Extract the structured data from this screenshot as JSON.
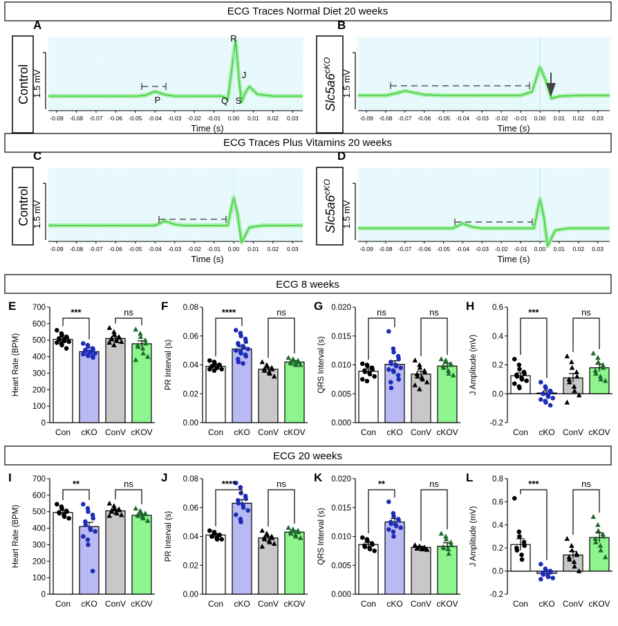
{
  "headers": {
    "traces_normal": "ECG Traces Normal Diet 20 weeks",
    "traces_vitamins": "ECG Traces Plus Vitamins 20 weeks",
    "ecg_8": "ECG 8 weeks",
    "ecg_20": "ECG 20 weeks"
  },
  "colors": {
    "trace": "#3ecf3e",
    "trace_band": "#a8eea8",
    "trace_grid": "#d6f3f7",
    "con": "#ffffff",
    "cko": "#b9b9f3",
    "conv": "#c8c8c8",
    "ckov": "#8ef58e",
    "pt_con": "#000000",
    "pt_cko": "#1d2bb5",
    "pt_conv": "#000000",
    "pt_ckov": "#1e6b2e"
  },
  "trace_panels": [
    {
      "letter": "A",
      "label": "Control",
      "italic": false,
      "sup": "",
      "scale": "1.5 mV",
      "xlabel": "Time (s)",
      "ticks": [
        "-0.09",
        "-0.08",
        "-0.07",
        "-0.06",
        "-0.05",
        "-0.04",
        "-0.03",
        "-0.02",
        "-0.01",
        "0.00",
        "0.01",
        "0.02",
        "0.03"
      ],
      "waves": [
        "P",
        "Q",
        "R",
        "S",
        "J"
      ]
    },
    {
      "letter": "B",
      "label": "Slc5a6",
      "italic": true,
      "sup": "cKO",
      "scale": "1.5 mV",
      "xlabel": "Time (s)",
      "ticks": [
        "-0.09",
        "-0.08",
        "-0.07",
        "-0.06",
        "-0.05",
        "-0.04",
        "-0.03",
        "-0.02",
        "-0.01",
        "0.00",
        "0.01",
        "0.02",
        "0.03"
      ],
      "waves": []
    },
    {
      "letter": "C",
      "label": "Control",
      "italic": false,
      "sup": "",
      "scale": "1.5 mV",
      "xlabel": "Time (s)",
      "ticks": [
        "-0.09",
        "-0.08",
        "-0.07",
        "-0.06",
        "-0.05",
        "-0.04",
        "-0.03",
        "-0.02",
        "-0.01",
        "0.00",
        "0.01",
        "0.02",
        "0.03"
      ],
      "waves": []
    },
    {
      "letter": "D",
      "label": "Slc5a6",
      "italic": true,
      "sup": "cKO",
      "scale": "1.5 mV",
      "xlabel": "Time (s)",
      "ticks": [
        "-0.09",
        "-0.08",
        "-0.07",
        "-0.06",
        "-0.05",
        "-0.04",
        "-0.03",
        "-0.02",
        "-0.01",
        "0.00",
        "0.01",
        "0.02",
        "0.03"
      ],
      "waves": []
    }
  ],
  "chart_data": [
    {
      "panel": "E",
      "type": "bar",
      "ylabel": "Heart Rate (BPM)",
      "ylim": [
        0,
        700
      ],
      "yticks": [
        "0",
        "100",
        "200",
        "300",
        "400",
        "500",
        "600",
        "700"
      ],
      "categories": [
        "Con",
        "cKO",
        "ConV",
        "cKOV"
      ],
      "values": [
        505,
        430,
        510,
        478
      ],
      "errors": [
        12,
        8,
        10,
        18
      ],
      "points": [
        [
          560,
          540,
          530,
          520,
          515,
          510,
          505,
          500,
          495,
          490,
          485,
          480,
          470,
          450
        ],
        [
          480,
          470,
          460,
          450,
          445,
          440,
          435,
          430,
          425,
          420,
          415,
          410,
          405,
          400,
          395
        ],
        [
          575,
          550,
          535,
          520,
          515,
          510,
          505,
          500,
          495,
          490,
          485,
          470
        ],
        [
          565,
          540,
          520,
          500,
          480,
          470,
          460,
          450,
          420,
          400,
          380
        ]
      ],
      "sig": [
        {
          "text": "***",
          "pair": [
            0,
            1
          ]
        },
        {
          "text": "ns",
          "pair": [
            2,
            3
          ]
        }
      ]
    },
    {
      "panel": "F",
      "type": "bar",
      "ylabel": "PR Interval (s)",
      "ylim": [
        0,
        0.08
      ],
      "yticks": [
        "0.00",
        "0.02",
        "0.04",
        "0.06",
        "0.08"
      ],
      "categories": [
        "Con",
        "cKO",
        "ConV",
        "cKOV"
      ],
      "values": [
        0.039,
        0.051,
        0.037,
        0.042
      ],
      "errors": [
        0.001,
        0.0015,
        0.001,
        0.001
      ],
      "points": [
        [
          0.043,
          0.042,
          0.041,
          0.04,
          0.04,
          0.039,
          0.039,
          0.038,
          0.038,
          0.037,
          0.037,
          0.036
        ],
        [
          0.064,
          0.062,
          0.06,
          0.058,
          0.056,
          0.055,
          0.054,
          0.053,
          0.052,
          0.051,
          0.05,
          0.049,
          0.048,
          0.047,
          0.046,
          0.044,
          0.042,
          0.041
        ],
        [
          0.042,
          0.04,
          0.039,
          0.038,
          0.037,
          0.037,
          0.036,
          0.035,
          0.034,
          0.032
        ],
        [
          0.045,
          0.044,
          0.043,
          0.043,
          0.042,
          0.042,
          0.041,
          0.041,
          0.04,
          0.04
        ]
      ],
      "sig": [
        {
          "text": "****",
          "pair": [
            0,
            1
          ]
        },
        {
          "text": "ns",
          "pair": [
            2,
            3
          ]
        }
      ]
    },
    {
      "panel": "G",
      "type": "bar",
      "ylabel": "QRS Interval  (s)",
      "ylim": [
        0,
        0.02
      ],
      "yticks": [
        "0.000",
        "0.005",
        "0.010",
        "0.015",
        "0.020"
      ],
      "categories": [
        "Con",
        "cKO",
        "ConV",
        "cKOV"
      ],
      "values": [
        0.0089,
        0.0101,
        0.0084,
        0.0098
      ],
      "errors": [
        0.0004,
        0.0006,
        0.0005,
        0.0005
      ],
      "points": [
        [
          0.0102,
          0.01,
          0.0098,
          0.0095,
          0.0092,
          0.009,
          0.0088,
          0.0086,
          0.0084,
          0.008,
          0.0075,
          0.0072
        ],
        [
          0.0158,
          0.0128,
          0.0122,
          0.0115,
          0.011,
          0.0105,
          0.0102,
          0.01,
          0.0098,
          0.0095,
          0.0092,
          0.009,
          0.0088,
          0.0082,
          0.0075,
          0.007,
          0.006
        ],
        [
          0.0108,
          0.01,
          0.0095,
          0.009,
          0.0087,
          0.0084,
          0.008,
          0.0078,
          0.0075,
          0.007,
          0.0065,
          0.0058
        ],
        [
          0.011,
          0.0108,
          0.0105,
          0.0102,
          0.01,
          0.0098,
          0.0095,
          0.009,
          0.0085,
          0.0082
        ]
      ],
      "sig": [
        {
          "text": "ns",
          "pair": [
            0,
            1
          ]
        },
        {
          "text": "ns",
          "pair": [
            2,
            3
          ]
        }
      ]
    },
    {
      "panel": "H",
      "type": "bar",
      "ylabel": "J Amplitude (mV)",
      "ylim": [
        -0.2,
        0.6
      ],
      "yticks": [
        "-0.2",
        "0.0",
        "0.2",
        "0.4",
        "0.6"
      ],
      "categories": [
        "Con",
        "cKO",
        "ConV",
        "cKOV"
      ],
      "values": [
        0.125,
        0.005,
        0.11,
        0.18
      ],
      "errors": [
        0.02,
        0.015,
        0.03,
        0.025
      ],
      "points": [
        [
          0.24,
          0.2,
          0.17,
          0.15,
          0.14,
          0.13,
          0.12,
          0.11,
          0.1,
          0.09,
          0.07,
          0.05,
          0.04
        ],
        [
          0.08,
          0.05,
          0.04,
          0.02,
          0.01,
          0.0,
          0.0,
          -0.01,
          -0.02,
          -0.03,
          -0.04,
          -0.05,
          -0.06,
          -0.08
        ],
        [
          0.26,
          0.22,
          0.18,
          0.15,
          0.12,
          0.1,
          0.08,
          0.05,
          0.02,
          -0.01,
          -0.06
        ],
        [
          0.28,
          0.25,
          0.22,
          0.2,
          0.18,
          0.16,
          0.14,
          0.12,
          0.1,
          0.09
        ]
      ],
      "sig": [
        {
          "text": "***",
          "pair": [
            0,
            1
          ]
        },
        {
          "text": "ns",
          "pair": [
            2,
            3
          ]
        }
      ]
    },
    {
      "panel": "I",
      "type": "bar",
      "ylabel": "Heart Rate (BPM)",
      "ylim": [
        0,
        700
      ],
      "yticks": [
        "0",
        "100",
        "200",
        "300",
        "400",
        "500",
        "600",
        "700"
      ],
      "categories": [
        "Con",
        "cKO",
        "ConV",
        "cKOV"
      ],
      "values": [
        495,
        410,
        505,
        478
      ],
      "errors": [
        12,
        25,
        10,
        8
      ],
      "points": [
        [
          545,
          530,
          520,
          505,
          500,
          495,
          490,
          480,
          470,
          460
        ],
        [
          545,
          520,
          500,
          480,
          460,
          440,
          420,
          400,
          390,
          380,
          350,
          330,
          300,
          140
        ],
        [
          550,
          535,
          520,
          515,
          510,
          505,
          500,
          495,
          490,
          480,
          475
        ],
        [
          520,
          505,
          495,
          490,
          485,
          480,
          475,
          470,
          460,
          445
        ]
      ],
      "sig": [
        {
          "text": "**",
          "pair": [
            0,
            1
          ]
        },
        {
          "text": "ns",
          "pair": [
            2,
            3
          ]
        }
      ]
    },
    {
      "panel": "J",
      "type": "bar",
      "ylabel": "PR Interval (s)",
      "ylim": [
        0,
        0.08
      ],
      "yticks": [
        "0.00",
        "0.02",
        "0.04",
        "0.06",
        "0.08"
      ],
      "categories": [
        "Con",
        "cKO",
        "ConV",
        "cKOV"
      ],
      "values": [
        0.041,
        0.063,
        0.039,
        0.043
      ],
      "errors": [
        0.0008,
        0.0025,
        0.001,
        0.001
      ],
      "points": [
        [
          0.044,
          0.043,
          0.042,
          0.041,
          0.041,
          0.04,
          0.04,
          0.039,
          0.038,
          0.038
        ],
        [
          0.077,
          0.074,
          0.07,
          0.068,
          0.066,
          0.065,
          0.063,
          0.062,
          0.06,
          0.058,
          0.055,
          0.052,
          0.05
        ],
        [
          0.044,
          0.042,
          0.041,
          0.04,
          0.039,
          0.039,
          0.038,
          0.037,
          0.036,
          0.035,
          0.033
        ],
        [
          0.046,
          0.045,
          0.044,
          0.044,
          0.043,
          0.043,
          0.042,
          0.041,
          0.04,
          0.039
        ]
      ],
      "sig": [
        {
          "text": "****",
          "pair": [
            0,
            1
          ]
        },
        {
          "text": "ns",
          "pair": [
            2,
            3
          ]
        }
      ]
    },
    {
      "panel": "K",
      "type": "bar",
      "ylabel": "QRS Interval  (s)",
      "ylim": [
        0,
        0.02
      ],
      "yticks": [
        "0.000",
        "0.005",
        "0.010",
        "0.015",
        "0.020"
      ],
      "categories": [
        "Con",
        "cKO",
        "ConV",
        "cKOV"
      ],
      "values": [
        0.0086,
        0.0125,
        0.0081,
        0.0083
      ],
      "errors": [
        0.0004,
        0.0006,
        0.0002,
        0.0006
      ],
      "points": [
        [
          0.0098,
          0.0095,
          0.0092,
          0.0088,
          0.0086,
          0.0084,
          0.0082,
          0.008,
          0.0078,
          0.0075
        ],
        [
          0.016,
          0.014,
          0.0135,
          0.013,
          0.0128,
          0.0125,
          0.0122,
          0.012,
          0.0118,
          0.0115,
          0.0112,
          0.0108,
          0.01
        ],
        [
          0.0085,
          0.0083,
          0.0082,
          0.0081,
          0.008,
          0.008,
          0.0079,
          0.0078,
          0.0078,
          0.0077
        ],
        [
          0.0105,
          0.01,
          0.0095,
          0.009,
          0.0085,
          0.0082,
          0.008,
          0.0078,
          0.007
        ]
      ],
      "sig": [
        {
          "text": "**",
          "pair": [
            0,
            1
          ]
        },
        {
          "text": "ns",
          "pair": [
            2,
            3
          ]
        }
      ]
    },
    {
      "panel": "L",
      "type": "bar",
      "ylabel": "J Amplitude (mV)",
      "ylim": [
        -0.2,
        0.8
      ],
      "yticks": [
        "-0.2",
        "0.0",
        "0.2",
        "0.4",
        "0.6",
        "0.8"
      ],
      "categories": [
        "Con",
        "cKO",
        "ConV",
        "cKOV"
      ],
      "values": [
        0.23,
        -0.02,
        0.14,
        0.29
      ],
      "errors": [
        0.05,
        0.015,
        0.03,
        0.04
      ],
      "points": [
        [
          0.63,
          0.34,
          0.3,
          0.25,
          0.22,
          0.2,
          0.18,
          0.14,
          0.1
        ],
        [
          0.06,
          0.02,
          0.01,
          0.0,
          -0.01,
          -0.02,
          -0.03,
          -0.04,
          -0.05,
          -0.06,
          -0.07
        ],
        [
          0.28,
          0.22,
          0.18,
          0.15,
          0.14,
          0.12,
          0.1,
          0.08,
          0.04,
          0.0
        ],
        [
          0.47,
          0.4,
          0.35,
          0.32,
          0.3,
          0.28,
          0.25,
          0.22,
          0.18,
          0.12
        ]
      ],
      "sig": [
        {
          "text": "***",
          "pair": [
            0,
            1
          ]
        },
        {
          "text": "ns",
          "pair": [
            2,
            3
          ]
        }
      ]
    }
  ]
}
